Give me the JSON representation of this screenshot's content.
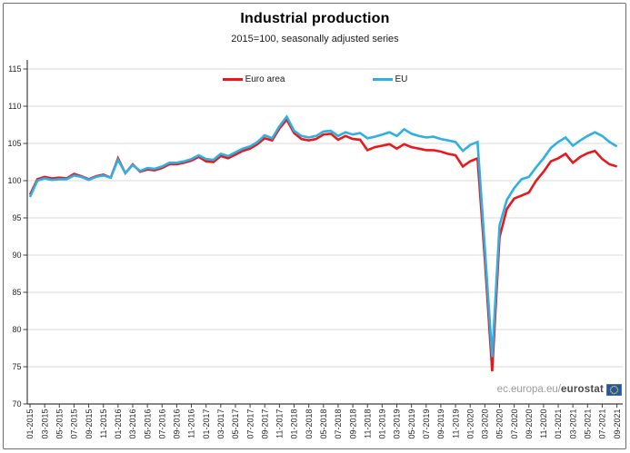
{
  "figure": {
    "watermark": {
      "prefix": "ec.europa.eu/",
      "brand": "eurostat"
    }
  },
  "colors": {
    "euro_area_line": "#e8191d",
    "eu_line": "#2fb0e3",
    "grid": "#d9d9d9",
    "axis": "#3f3f3f",
    "tick_label": "#262626",
    "flag_blue": "#2456a4",
    "flag_stars": "#ffd617"
  },
  "chart_data": {
    "type": "line",
    "title": "Industrial production",
    "subtitle": "2015=100, seasonally adjusted series",
    "xlabel": "",
    "ylabel": "",
    "ylim": [
      70,
      115
    ],
    "y_ticks": [
      70,
      75,
      80,
      85,
      90,
      95,
      100,
      105,
      110,
      115
    ],
    "grid": true,
    "legend_position": "top",
    "x_tick_every": 2,
    "x": [
      "01-2015",
      "02-2015",
      "03-2015",
      "04-2015",
      "05-2015",
      "06-2015",
      "07-2015",
      "08-2015",
      "09-2015",
      "10-2015",
      "11-2015",
      "12-2015",
      "01-2016",
      "02-2016",
      "03-2016",
      "04-2016",
      "05-2016",
      "06-2016",
      "07-2016",
      "08-2016",
      "09-2016",
      "10-2016",
      "11-2016",
      "12-2016",
      "01-2017",
      "02-2017",
      "03-2017",
      "04-2017",
      "05-2017",
      "06-2017",
      "07-2017",
      "08-2017",
      "09-2017",
      "10-2017",
      "11-2017",
      "12-2017",
      "01-2018",
      "02-2018",
      "03-2018",
      "04-2018",
      "05-2018",
      "06-2018",
      "07-2018",
      "08-2018",
      "09-2018",
      "10-2018",
      "11-2018",
      "12-2018",
      "01-2019",
      "02-2019",
      "03-2019",
      "04-2019",
      "05-2019",
      "06-2019",
      "07-2019",
      "08-2019",
      "09-2019",
      "10-2019",
      "11-2019",
      "12-2019",
      "01-2020",
      "02-2020",
      "03-2020",
      "04-2020",
      "05-2020",
      "06-2020",
      "07-2020",
      "08-2020",
      "09-2020",
      "10-2020",
      "11-2020",
      "12-2020",
      "01-2021",
      "02-2021",
      "03-2021",
      "04-2021",
      "05-2021",
      "06-2021",
      "07-2021",
      "08-2021",
      "09-2021"
    ],
    "x_tick_labels": [
      "01-2015",
      "03-2015",
      "05-2015",
      "07-2015",
      "09-2015",
      "11-2015",
      "01-2016",
      "03-2016",
      "05-2016",
      "07-2016",
      "09-2016",
      "11-2016",
      "01-2017",
      "03-2017",
      "05-2017",
      "07-2017",
      "09-2017",
      "11-2017",
      "01-2018",
      "03-2018",
      "05-2018",
      "07-2018",
      "09-2018",
      "11-2018",
      "01-2019",
      "03-2019",
      "05-2019",
      "07-2019",
      "09-2019",
      "11-2019",
      "01-2020",
      "03-2020",
      "05-2020",
      "07-2020",
      "09-2020",
      "11-2020",
      "01-2021",
      "03-2021",
      "05-2021",
      "07-2021",
      "09-2021"
    ],
    "series": [
      {
        "name": "Euro area",
        "color": "#e8191d",
        "values": [
          98.1,
          100.2,
          100.5,
          100.3,
          100.4,
          100.3,
          100.9,
          100.6,
          100.2,
          100.6,
          100.8,
          100.4,
          103.0,
          101.0,
          102.2,
          101.2,
          101.5,
          101.4,
          101.7,
          102.2,
          102.2,
          102.4,
          102.7,
          103.2,
          102.6,
          102.5,
          103.3,
          103.0,
          103.5,
          104.0,
          104.3,
          104.9,
          105.7,
          105.4,
          107.0,
          108.2,
          106.4,
          105.6,
          105.4,
          105.6,
          106.2,
          106.3,
          105.5,
          106.0,
          105.6,
          105.5,
          104.1,
          104.5,
          104.7,
          104.9,
          104.3,
          104.9,
          104.5,
          104.3,
          104.1,
          104.1,
          103.9,
          103.6,
          103.4,
          101.9,
          102.6,
          103.0,
          89.5,
          74.4,
          92.4,
          96.2,
          97.6,
          98.0,
          98.4,
          100.0,
          101.2,
          102.6,
          103.0,
          103.6,
          102.4,
          103.2,
          103.7,
          104.0,
          102.9,
          102.2,
          101.9
        ]
      },
      {
        "name": "EU",
        "color": "#2fb0e3",
        "values": [
          97.8,
          100.0,
          100.3,
          100.1,
          100.2,
          100.2,
          100.7,
          100.5,
          100.1,
          100.5,
          100.7,
          100.4,
          102.8,
          101.0,
          102.1,
          101.3,
          101.7,
          101.6,
          101.9,
          102.4,
          102.4,
          102.6,
          102.9,
          103.4,
          102.9,
          102.8,
          103.6,
          103.3,
          103.8,
          104.3,
          104.6,
          105.2,
          106.1,
          105.7,
          107.3,
          108.6,
          106.7,
          106.0,
          105.8,
          106.0,
          106.6,
          106.7,
          106.0,
          106.5,
          106.2,
          106.4,
          105.7,
          105.9,
          106.2,
          106.5,
          106.0,
          106.9,
          106.3,
          106.0,
          105.8,
          105.9,
          105.6,
          105.4,
          105.2,
          104.0,
          104.8,
          105.2,
          91.0,
          76.3,
          94.0,
          97.4,
          99.0,
          100.2,
          100.5,
          101.8,
          103.0,
          104.4,
          105.2,
          105.8,
          104.7,
          105.4,
          106.0,
          106.5,
          106.0,
          105.2,
          104.6
        ]
      }
    ]
  }
}
